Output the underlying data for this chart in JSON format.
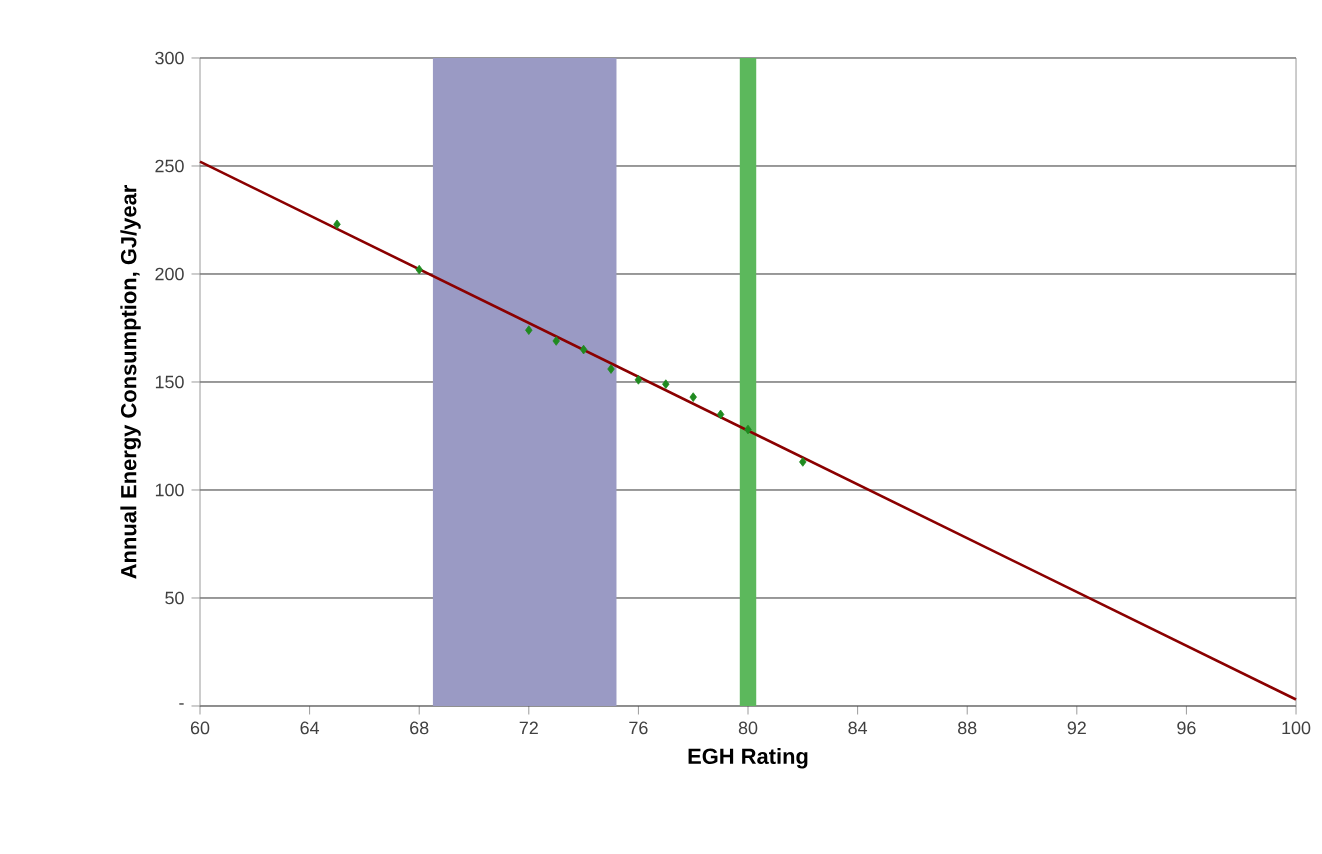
{
  "chart_data": {
    "type": "scatter",
    "xlabel": "EGH Rating",
    "ylabel": "Annual Energy Consumption, GJ/year",
    "xlim": [
      60,
      100
    ],
    "ylim": [
      0,
      300
    ],
    "xticks": [
      60,
      64,
      68,
      72,
      76,
      80,
      84,
      88,
      92,
      96,
      100
    ],
    "yticks": [
      {
        "value": 0,
        "label": "-"
      },
      50,
      100,
      150,
      200,
      250,
      300
    ],
    "grid": "y",
    "bands": [
      {
        "axis": "x",
        "from": 68.5,
        "to": 75.2,
        "color": "#9a9ac4"
      },
      {
        "axis": "x",
        "from": 79.7,
        "to": 80.3,
        "color": "#5cb85c"
      }
    ],
    "series": [
      {
        "color": "#1f8a1f",
        "marker": "diamond",
        "x": [
          65,
          68,
          72,
          73,
          74,
          75,
          76,
          77,
          78,
          79,
          80,
          82
        ],
        "values": [
          223,
          202,
          174,
          169,
          165,
          156,
          151,
          149,
          143,
          135,
          128,
          113
        ]
      },
      {
        "type": "line",
        "color": "#8b0000",
        "marker": "none",
        "line_style": "solid",
        "x": [
          60,
          100
        ],
        "values": [
          252,
          3
        ]
      }
    ]
  }
}
